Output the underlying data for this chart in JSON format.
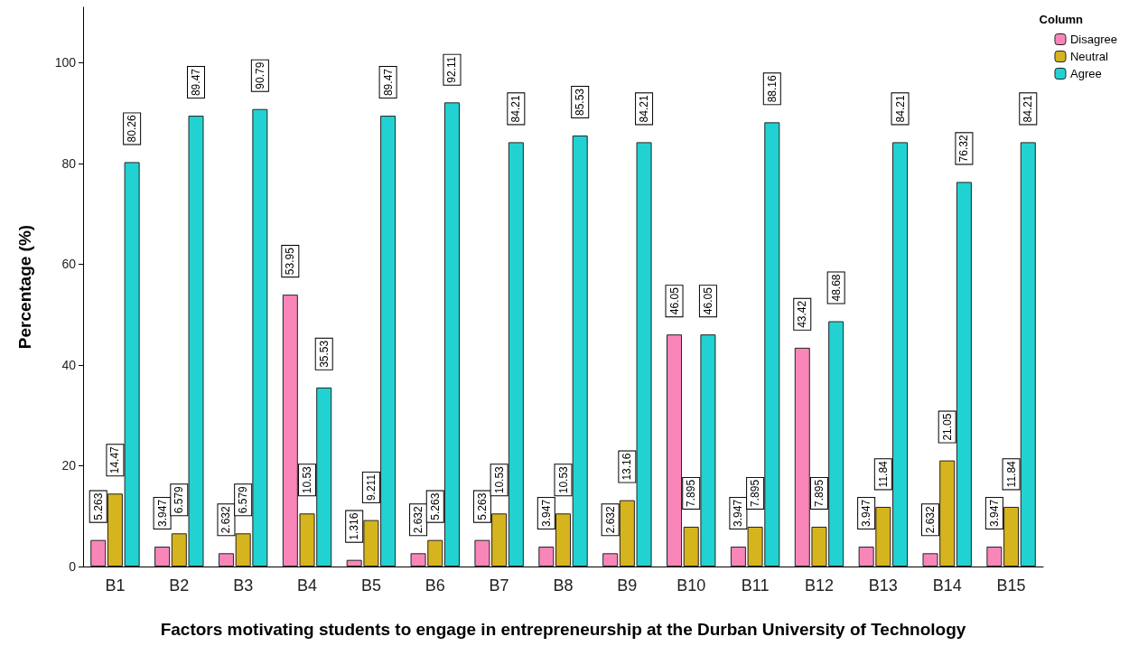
{
  "chart_data": {
    "type": "bar",
    "xlabel": "Factors motivating students to engage in entrepreneurship at the Durban University of Technology",
    "ylabel": "Percentage (%)",
    "legend_title": "Column",
    "categories": [
      "B1",
      "B2",
      "B3",
      "B4",
      "B5",
      "B6",
      "B7",
      "B8",
      "B9",
      "B10",
      "B11",
      "B12",
      "B13",
      "B14",
      "B15"
    ],
    "series": [
      {
        "name": "Disagree",
        "color": "#f986b8",
        "values": [
          5.263,
          3.947,
          2.632,
          53.95,
          1.316,
          2.632,
          5.263,
          3.947,
          2.632,
          46.05,
          3.947,
          43.42,
          3.947,
          2.632,
          3.947
        ]
      },
      {
        "name": "Neutral",
        "color": "#d6b41e",
        "values": [
          14.47,
          6.579,
          6.579,
          10.53,
          9.211,
          5.263,
          10.53,
          10.53,
          13.16,
          7.895,
          7.895,
          7.895,
          11.84,
          21.05,
          11.84
        ]
      },
      {
        "name": "Agree",
        "color": "#22d2d2",
        "values": [
          80.26,
          89.47,
          90.79,
          35.53,
          89.47,
          92.11,
          84.21,
          85.53,
          84.21,
          46.05,
          88.16,
          48.68,
          84.21,
          76.32,
          84.21
        ]
      }
    ],
    "ylim": [
      0,
      111
    ],
    "yticks": [
      0,
      20,
      40,
      60,
      80,
      100
    ],
    "grid": false,
    "legend": "top right",
    "data_labels": true
  }
}
